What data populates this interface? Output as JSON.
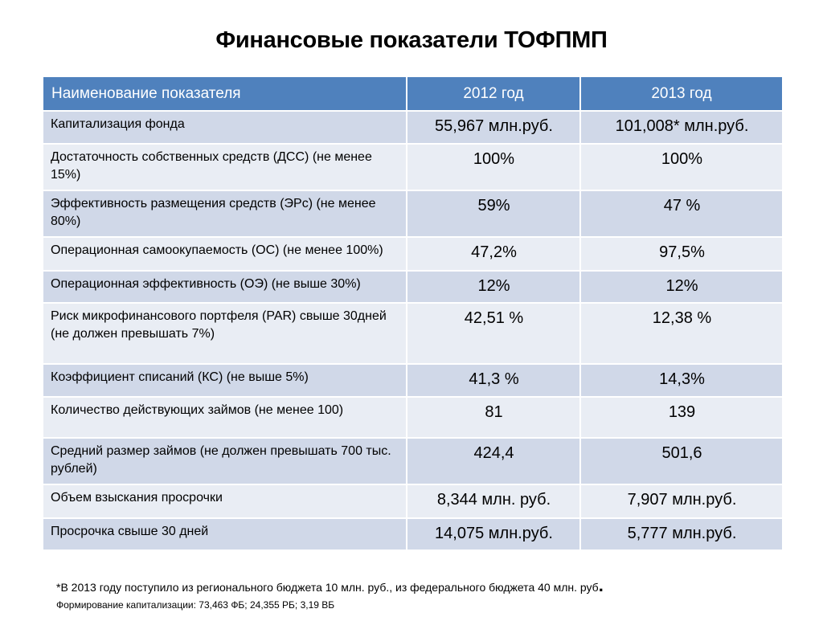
{
  "title": "Финансовые показатели ТОФПМП",
  "table": {
    "headers": [
      "Наименование показателя",
      "2012 год",
      "2013 год"
    ],
    "rows": [
      {
        "name": "Капитализация фонда",
        "v2012": "55,967 млн.руб.",
        "v2013": "101,008* млн.руб."
      },
      {
        "name": "Достаточность собственных средств (ДСС) (не менее 15%)",
        "v2012": "100%",
        "v2013": "100%"
      },
      {
        "name": "Эффективность размещения средств (ЭРс) (не менее 80%)",
        "v2012": "59%",
        "v2013": "47 %"
      },
      {
        "name": "Операционная самоокупаемость (ОС) (не менее 100%)",
        "v2012": "47,2%",
        "v2013": "97,5%"
      },
      {
        "name": "Операционная эффективность (ОЭ) (не выше 30%)",
        "v2012": "12%",
        "v2013": "12%"
      },
      {
        "name": "Риск микрофинансового портфеля (PAR) свыше 30дней (не должен превышать 7%)",
        "v2012": "42,51 %",
        "v2013": "12,38 %"
      },
      {
        "name": "Коэффициент списаний (КС)  (не выше 5%)",
        "v2012": "41,3 %",
        "v2013": "14,3%"
      },
      {
        "name": "Количество действующих займов (не менее 100)",
        "v2012": "81",
        "v2013": "139"
      },
      {
        "name": "Средний размер займов (не должен превышать 700 тыс. рублей)",
        "v2012": "424,4",
        "v2013": "501,6"
      },
      {
        "name": "Объем взыскания просрочки",
        "v2012": "8,344 млн. руб.",
        "v2013": "7,907 млн.руб."
      },
      {
        "name": "Просрочка свыше 30 дней",
        "v2012": "14,075 млн.руб.",
        "v2013": "5,777 млн.руб."
      }
    ]
  },
  "footnote": {
    "text": "*В 2013 году поступило из регионального бюджета 10 млн. руб., из федерального бюджета 40 млн. руб",
    "end_mark": ".",
    "subtext": "Формирование капитализации: 73,463 ФБ; 24,355 РБ; 3,19 ВБ"
  }
}
